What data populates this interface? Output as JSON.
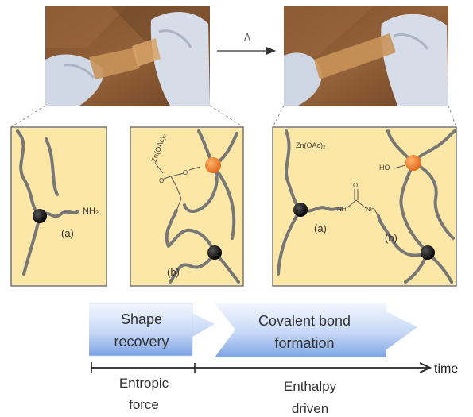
{
  "photos": {
    "heat_symbol": "Δ"
  },
  "panels": {
    "left": {
      "amine": "NH₂",
      "marker": "(a)"
    },
    "middle": {
      "catalyst": "Zn(OAc)₂",
      "marker": "(b)"
    },
    "right": {
      "catalyst": "Zn(OAc)₂",
      "hydroxyl": "HO",
      "nh_left": "NH",
      "nh_right": "NH",
      "carbonyl_o": "O",
      "marker_a": "(a)",
      "marker_b": "(b)"
    }
  },
  "flow": {
    "step1_line1": "Shape",
    "step1_line2": "recovery",
    "step2_line1": "Covalent bond",
    "step2_line2": "formation"
  },
  "timeline": {
    "axis_label": "time",
    "entropic_line1": "Entropic",
    "entropic_line2": "force",
    "enthalpy_line1": "Enthalpy",
    "enthalpy_line2": "driven"
  },
  "colors": {
    "panel_fill": "#fde7a6",
    "panel_border": "#777777",
    "black_node": "#111111",
    "orange_node": "#f07c22",
    "arrow_top": "#f2f6fd",
    "arrow_bottom": "#7fa6e6"
  }
}
